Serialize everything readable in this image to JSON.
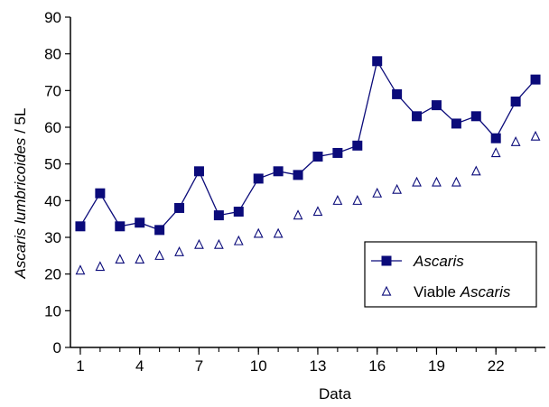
{
  "chart_data": {
    "type": "line",
    "title": "",
    "xlabel": "Data",
    "ylabel": "Ascaris lumbricoides / 5L",
    "ylabel_parts": [
      {
        "text": "Ascaris lumbricoides",
        "italic": true
      },
      {
        "text": " / 5L",
        "italic": false
      }
    ],
    "xlim": [
      0.5,
      24.5
    ],
    "ylim": [
      0,
      90
    ],
    "x_ticks": [
      1,
      4,
      7,
      10,
      13,
      16,
      19,
      22
    ],
    "x_tick_labels": [
      "1",
      "4",
      "7",
      "10",
      "13",
      "16",
      "19",
      "22"
    ],
    "y_ticks": [
      0,
      10,
      20,
      30,
      40,
      50,
      60,
      70,
      80,
      90
    ],
    "y_tick_labels": [
      "0",
      "10",
      "20",
      "30",
      "40",
      "50",
      "60",
      "70",
      "80",
      "90"
    ],
    "grid": false,
    "legend_position": "lower-right",
    "x": [
      1,
      2,
      3,
      4,
      5,
      6,
      7,
      8,
      9,
      10,
      11,
      12,
      13,
      14,
      15,
      16,
      17,
      18,
      19,
      20,
      21,
      22,
      23,
      24
    ],
    "series": [
      {
        "name": "Ascaris",
        "name_parts": [
          {
            "text": "Ascaris",
            "italic": true
          }
        ],
        "marker": "filled-square",
        "line": true,
        "color": "#0b0b7a",
        "values": [
          33,
          42,
          33,
          34,
          32,
          38,
          48,
          36,
          37,
          46,
          48,
          47,
          52,
          53,
          55,
          78,
          69,
          63,
          66,
          61,
          63,
          57,
          67,
          73
        ]
      },
      {
        "name": "Viable Ascaris",
        "name_parts": [
          {
            "text": "Viable ",
            "italic": false
          },
          {
            "text": "Ascaris",
            "italic": true
          }
        ],
        "marker": "open-triangle",
        "line": false,
        "color": "#0b0b7a",
        "values": [
          21,
          22,
          24,
          24,
          25,
          26,
          28,
          28,
          29,
          31,
          31,
          36,
          37,
          40,
          40,
          42,
          43,
          45,
          45,
          45,
          48,
          53,
          56,
          57.5
        ]
      }
    ]
  }
}
